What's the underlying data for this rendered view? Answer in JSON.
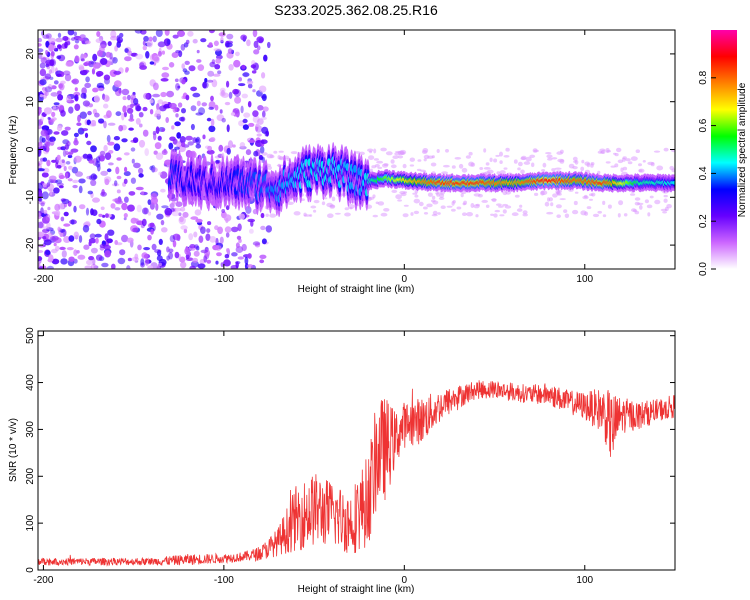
{
  "title": "S233.2025.362.08.25.R16",
  "chart_data": [
    {
      "type": "heatmap",
      "xlabel": "Height of straight line (km)",
      "ylabel": "Frequency (Hz)",
      "xlim": [
        -203,
        150
      ],
      "ylim": [
        -25,
        25
      ],
      "xticks": [
        -200,
        -100,
        0,
        100
      ],
      "yticks": [
        -20,
        -10,
        0,
        10,
        20
      ],
      "colorbar": {
        "label": "Normalized spectral amplitude",
        "range": [
          0,
          1
        ],
        "ticks": [
          "0.0",
          "0.2",
          "0.4",
          "0.6",
          "0.8"
        ],
        "colormap": [
          "#ffffff",
          "#cc66ff",
          "#6600ff",
          "#0000ff",
          "#00ffff",
          "#00ff00",
          "#ffff00",
          "#ff8000",
          "#ff0000",
          "#ff00aa"
        ]
      },
      "ridge": {
        "description_points": [
          {
            "x": -130,
            "y": -6,
            "amp": 0.35
          },
          {
            "x": -110,
            "y": -7,
            "amp": 0.3
          },
          {
            "x": -90,
            "y": -7,
            "amp": 0.35
          },
          {
            "x": -70,
            "y": -8,
            "amp": 0.4
          },
          {
            "x": -55,
            "y": -5,
            "amp": 0.45
          },
          {
            "x": -40,
            "y": -4,
            "amp": 0.45
          },
          {
            "x": -25,
            "y": -7,
            "amp": 0.4
          },
          {
            "x": -10,
            "y": -6,
            "amp": 0.6
          },
          {
            "x": 0,
            "y": -6.5,
            "amp": 0.7
          },
          {
            "x": 20,
            "y": -7,
            "amp": 0.85
          },
          {
            "x": 40,
            "y": -7,
            "amp": 0.85
          },
          {
            "x": 60,
            "y": -7,
            "amp": 0.75
          },
          {
            "x": 80,
            "y": -6.5,
            "amp": 0.9
          },
          {
            "x": 95,
            "y": -6.5,
            "amp": 0.8
          },
          {
            "x": 110,
            "y": -7,
            "amp": 0.85
          },
          {
            "x": 130,
            "y": -7,
            "amp": 0.5
          },
          {
            "x": 150,
            "y": -7,
            "amp": 0.45
          }
        ],
        "noise_region_x": [
          -203,
          -75
        ]
      }
    },
    {
      "type": "line",
      "xlabel": "Height of straight line (km)",
      "ylabel": "SNR (10 * v/v)",
      "xlim": [
        -203,
        150
      ],
      "ylim": [
        0,
        510
      ],
      "xticks": [
        -200,
        -100,
        0,
        100
      ],
      "yticks": [
        0,
        100,
        200,
        300,
        400,
        500
      ],
      "series": [
        {
          "color": "#ee3333",
          "envelope": {
            "x": [
              -203,
              -180,
              -160,
              -140,
              -120,
              -100,
              -90,
              -80,
              -70,
              -60,
              -50,
              -40,
              -30,
              -20,
              -15,
              -10,
              -5,
              0,
              10,
              20,
              30,
              40,
              50,
              60,
              70,
              80,
              90,
              100,
              110,
              115,
              120,
              130,
              140,
              150
            ],
            "y": [
              18,
              18,
              18,
              18,
              22,
              25,
              28,
              35,
              60,
              110,
              130,
              120,
              100,
              150,
              250,
              260,
              280,
              310,
              320,
              350,
              370,
              385,
              385,
              380,
              375,
              375,
              360,
              350,
              340,
              300,
              330,
              330,
              340,
              350
            ],
            "spread": [
              8,
              8,
              8,
              8,
              12,
              10,
              10,
              15,
              30,
              70,
              80,
              70,
              70,
              100,
              120,
              110,
              60,
              50,
              50,
              35,
              25,
              20,
              20,
              20,
              20,
              25,
              25,
              30,
              50,
              80,
              40,
              30,
              25,
              25
            ]
          }
        }
      ]
    }
  ]
}
